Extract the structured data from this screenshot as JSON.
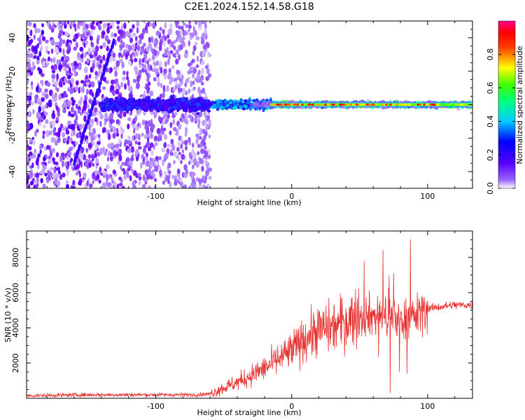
{
  "title": "C2E1.2024.152.14.58.G18",
  "chart_data": [
    {
      "type": "heatmap",
      "xlabel": "Height of straight line (km)",
      "ylabel": "Frequency (Hz)",
      "xlim": [
        -195,
        133
      ],
      "ylim": [
        -50,
        50
      ],
      "x_ticks": [
        -100,
        0,
        100
      ],
      "y_ticks": [
        -40,
        -20,
        0,
        20,
        40
      ],
      "colorbar": {
        "label": "Normalized spectral amplitude",
        "range": [
          0,
          1
        ],
        "ticks": [
          "0.0",
          "0.2",
          "0.4",
          "0.6",
          "0.8"
        ],
        "colors": [
          "#ffffff",
          "#7b00ff",
          "#0000ff",
          "#00ffff",
          "#00ff00",
          "#ffff00",
          "#ff0000",
          "#ff00a0"
        ]
      },
      "features": {
        "noise_region_x": [
          -195,
          -60
        ],
        "signal_line_freq": 0,
        "signal_onset_x": -60,
        "strong_signal_x": [
          -15,
          133
        ]
      }
    },
    {
      "type": "line",
      "xlabel": "Height of straight line (km)",
      "ylabel": "SNR (10 * v/v)",
      "xlim": [
        -195,
        133
      ],
      "ylim": [
        0,
        9500
      ],
      "x_ticks": [
        -100,
        0,
        100
      ],
      "y_ticks": [
        2000,
        4000,
        6000,
        8000
      ],
      "color": "#e8302f",
      "series": [
        {
          "x": [
            -195,
            -150,
            -100,
            -70,
            -60,
            -50,
            -40,
            -30,
            -20,
            -10,
            0,
            10,
            20,
            30,
            40,
            50,
            60,
            70,
            80,
            90,
            100,
            110,
            120,
            133
          ],
          "y": [
            150,
            200,
            200,
            200,
            250,
            600,
            900,
            1300,
            1700,
            2200,
            2700,
            3400,
            3900,
            4000,
            4400,
            4800,
            4700,
            4600,
            4500,
            4600,
            5100,
            5200,
            5300,
            5300
          ]
        }
      ]
    }
  ]
}
